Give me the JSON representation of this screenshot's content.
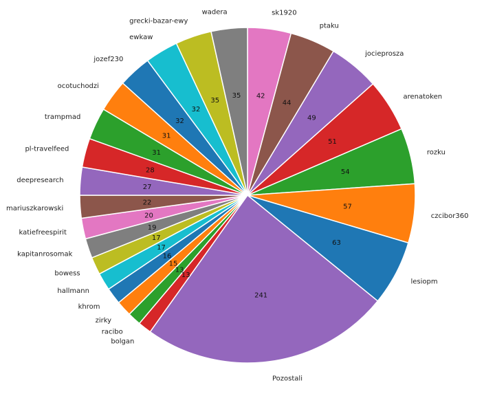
{
  "chart_data": {
    "type": "pie",
    "title": "",
    "start_angle_deg": 90,
    "direction": "clockwise",
    "slices": [
      {
        "label": "sk1920",
        "value": 42,
        "color": "#e377c2"
      },
      {
        "label": "ptaku",
        "value": 44,
        "color": "#8c564b"
      },
      {
        "label": "jocieprosza",
        "value": 49,
        "color": "#9467bd"
      },
      {
        "label": "arenatoken",
        "value": 51,
        "color": "#d62728"
      },
      {
        "label": "rozku",
        "value": 54,
        "color": "#2ca02c"
      },
      {
        "label": "czcibor360",
        "value": 57,
        "color": "#ff7f0e"
      },
      {
        "label": "lesiopm",
        "value": 63,
        "color": "#1f77b4"
      },
      {
        "label": "Pozostali",
        "value": 241,
        "color": "#9467bd"
      },
      {
        "label": "bolgan",
        "value": 13,
        "color": "#d62728"
      },
      {
        "label": "racibo",
        "value": 13,
        "color": "#2ca02c"
      },
      {
        "label": "zirky",
        "value": 15,
        "color": "#ff7f0e"
      },
      {
        "label": "khrom",
        "value": 16,
        "color": "#1f77b4"
      },
      {
        "label": "hallmann",
        "value": 17,
        "color": "#17becf"
      },
      {
        "label": "bowess",
        "value": 17,
        "color": "#bcbd22"
      },
      {
        "label": "kapitanrosomak",
        "value": 19,
        "color": "#7f7f7f"
      },
      {
        "label": "katiefreespirit",
        "value": 20,
        "color": "#e377c2"
      },
      {
        "label": "mariuszkarowski",
        "value": 22,
        "color": "#8c564b"
      },
      {
        "label": "deepresearch",
        "value": 27,
        "color": "#9467bd"
      },
      {
        "label": "pl-travelfeed",
        "value": 28,
        "color": "#d62728"
      },
      {
        "label": "trampmad",
        "value": 31,
        "color": "#2ca02c"
      },
      {
        "label": "ocotuchodzi",
        "value": 31,
        "color": "#ff7f0e"
      },
      {
        "label": "jozef230",
        "value": 32,
        "color": "#1f77b4"
      },
      {
        "label": "ewkaw",
        "value": 32,
        "color": "#17becf"
      },
      {
        "label": "grecki-bazar-ewy",
        "value": 35,
        "color": "#bcbd22"
      },
      {
        "label": "wadera",
        "value": 35,
        "color": "#7f7f7f"
      }
    ]
  }
}
